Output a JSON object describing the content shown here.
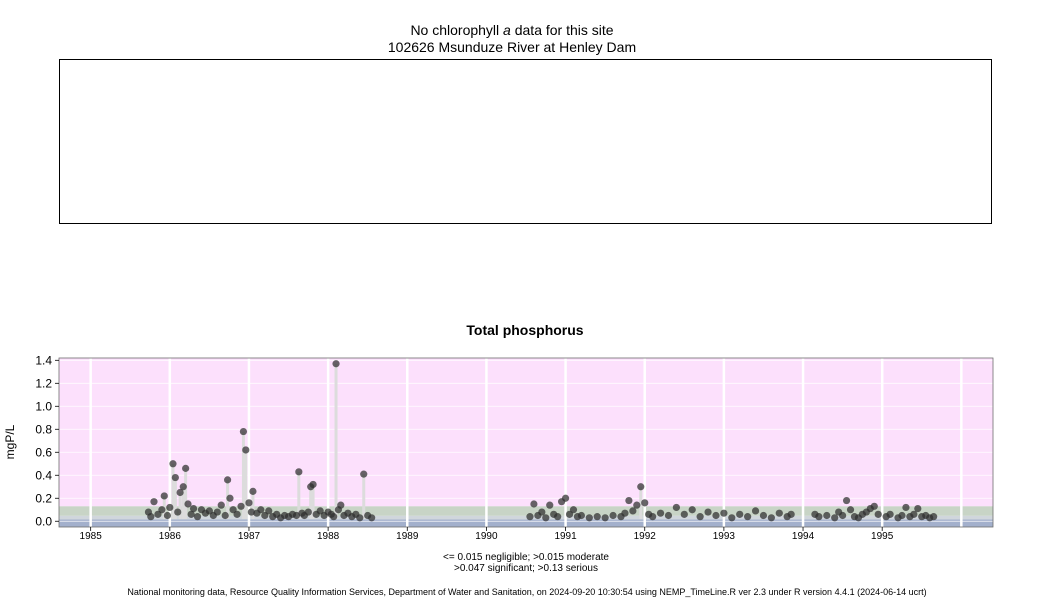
{
  "header": {
    "line1_prefix": "No chlorophyll",
    "line1_italic": "a",
    "line1_suffix": "data for this site",
    "line2": "102626 Msunduze River at Henley Dam"
  },
  "colors": {
    "serious_band": "#fce0fc",
    "significant_band": "#c8d4c6",
    "moderate_band": "#d0d6dc",
    "negligible_band": "#a3b0cc",
    "grid": "#ffffff",
    "points": "#2e2e2e",
    "spike_lines": "#dcdcdc"
  },
  "chart_data": {
    "type": "scatter",
    "title": "Total phosphorus",
    "ylabel": "mgP/L",
    "xlabel": "",
    "xlim": [
      1984.6,
      1996.4
    ],
    "ylim": [
      -0.05,
      1.42
    ],
    "yticks": [
      "0.0",
      "0.2",
      "0.4",
      "0.6",
      "0.8",
      "1.0",
      "1.2",
      "1.4"
    ],
    "xticks": [
      "1985",
      "1986",
      "1987",
      "1988",
      "1989",
      "1990",
      "1991",
      "1992",
      "1993",
      "1994",
      "1995"
    ],
    "grid": true,
    "thresholds": {
      "negligible_max": 0.015,
      "moderate_max": 0.047,
      "significant_max": 0.13
    },
    "points": [
      [
        1985.73,
        0.08
      ],
      [
        1985.76,
        0.04
      ],
      [
        1985.8,
        0.17
      ],
      [
        1985.85,
        0.06
      ],
      [
        1985.9,
        0.1
      ],
      [
        1985.93,
        0.22
      ],
      [
        1985.97,
        0.05
      ],
      [
        1986.0,
        0.12
      ],
      [
        1986.04,
        0.5
      ],
      [
        1986.07,
        0.38
      ],
      [
        1986.1,
        0.08
      ],
      [
        1986.13,
        0.25
      ],
      [
        1986.17,
        0.3
      ],
      [
        1986.2,
        0.46
      ],
      [
        1986.23,
        0.15
      ],
      [
        1986.27,
        0.06
      ],
      [
        1986.3,
        0.11
      ],
      [
        1986.35,
        0.04
      ],
      [
        1986.4,
        0.1
      ],
      [
        1986.45,
        0.07
      ],
      [
        1986.5,
        0.09
      ],
      [
        1986.55,
        0.05
      ],
      [
        1986.6,
        0.08
      ],
      [
        1986.65,
        0.14
      ],
      [
        1986.7,
        0.05
      ],
      [
        1986.73,
        0.36
      ],
      [
        1986.76,
        0.2
      ],
      [
        1986.8,
        0.1
      ],
      [
        1986.85,
        0.06
      ],
      [
        1986.9,
        0.13
      ],
      [
        1986.93,
        0.78
      ],
      [
        1986.96,
        0.62
      ],
      [
        1987.0,
        0.16
      ],
      [
        1987.03,
        0.08
      ],
      [
        1987.05,
        0.26
      ],
      [
        1987.1,
        0.07
      ],
      [
        1987.15,
        0.1
      ],
      [
        1987.2,
        0.05
      ],
      [
        1987.25,
        0.09
      ],
      [
        1987.3,
        0.04
      ],
      [
        1987.35,
        0.06
      ],
      [
        1987.4,
        0.03
      ],
      [
        1987.45,
        0.05
      ],
      [
        1987.5,
        0.04
      ],
      [
        1987.55,
        0.06
      ],
      [
        1987.6,
        0.05
      ],
      [
        1987.63,
        0.43
      ],
      [
        1987.67,
        0.07
      ],
      [
        1987.7,
        0.05
      ],
      [
        1987.75,
        0.08
      ],
      [
        1987.78,
        0.3
      ],
      [
        1987.81,
        0.32
      ],
      [
        1987.85,
        0.06
      ],
      [
        1987.9,
        0.09
      ],
      [
        1987.95,
        0.05
      ],
      [
        1988.0,
        0.08
      ],
      [
        1988.04,
        0.06
      ],
      [
        1988.07,
        0.04
      ],
      [
        1988.1,
        1.37
      ],
      [
        1988.13,
        0.1
      ],
      [
        1988.16,
        0.14
      ],
      [
        1988.2,
        0.05
      ],
      [
        1988.25,
        0.07
      ],
      [
        1988.3,
        0.04
      ],
      [
        1988.35,
        0.06
      ],
      [
        1988.4,
        0.03
      ],
      [
        1988.45,
        0.41
      ],
      [
        1988.5,
        0.05
      ],
      [
        1988.55,
        0.03
      ],
      [
        1990.55,
        0.04
      ],
      [
        1990.6,
        0.15
      ],
      [
        1990.65,
        0.05
      ],
      [
        1990.7,
        0.08
      ],
      [
        1990.75,
        0.03
      ],
      [
        1990.8,
        0.14
      ],
      [
        1990.85,
        0.06
      ],
      [
        1990.9,
        0.04
      ],
      [
        1990.95,
        0.17
      ],
      [
        1991.0,
        0.2
      ],
      [
        1991.05,
        0.06
      ],
      [
        1991.1,
        0.1
      ],
      [
        1991.15,
        0.04
      ],
      [
        1991.2,
        0.05
      ],
      [
        1991.3,
        0.03
      ],
      [
        1991.4,
        0.04
      ],
      [
        1991.5,
        0.03
      ],
      [
        1991.6,
        0.05
      ],
      [
        1991.7,
        0.04
      ],
      [
        1991.75,
        0.07
      ],
      [
        1991.8,
        0.18
      ],
      [
        1991.85,
        0.09
      ],
      [
        1991.9,
        0.14
      ],
      [
        1991.95,
        0.3
      ],
      [
        1992.0,
        0.16
      ],
      [
        1992.05,
        0.06
      ],
      [
        1992.1,
        0.04
      ],
      [
        1992.2,
        0.07
      ],
      [
        1992.3,
        0.05
      ],
      [
        1992.4,
        0.12
      ],
      [
        1992.5,
        0.06
      ],
      [
        1992.6,
        0.1
      ],
      [
        1992.7,
        0.04
      ],
      [
        1992.8,
        0.08
      ],
      [
        1992.9,
        0.05
      ],
      [
        1993.0,
        0.07
      ],
      [
        1993.1,
        0.03
      ],
      [
        1993.2,
        0.06
      ],
      [
        1993.3,
        0.04
      ],
      [
        1993.4,
        0.09
      ],
      [
        1993.5,
        0.05
      ],
      [
        1993.6,
        0.03
      ],
      [
        1993.7,
        0.07
      ],
      [
        1993.8,
        0.04
      ],
      [
        1993.85,
        0.06
      ],
      [
        1994.15,
        0.06
      ],
      [
        1994.2,
        0.04
      ],
      [
        1994.3,
        0.05
      ],
      [
        1994.4,
        0.03
      ],
      [
        1994.45,
        0.08
      ],
      [
        1994.5,
        0.05
      ],
      [
        1994.55,
        0.18
      ],
      [
        1994.6,
        0.1
      ],
      [
        1994.65,
        0.04
      ],
      [
        1994.7,
        0.03
      ],
      [
        1994.75,
        0.06
      ],
      [
        1994.8,
        0.08
      ],
      [
        1994.85,
        0.11
      ],
      [
        1994.9,
        0.13
      ],
      [
        1994.95,
        0.06
      ],
      [
        1995.05,
        0.04
      ],
      [
        1995.1,
        0.06
      ],
      [
        1995.2,
        0.03
      ],
      [
        1995.25,
        0.05
      ],
      [
        1995.3,
        0.12
      ],
      [
        1995.35,
        0.04
      ],
      [
        1995.4,
        0.06
      ],
      [
        1995.45,
        0.11
      ],
      [
        1995.5,
        0.04
      ],
      [
        1995.55,
        0.05
      ],
      [
        1995.6,
        0.03
      ],
      [
        1995.65,
        0.04
      ]
    ]
  },
  "legend": {
    "line1": "<= 0.015 negligible; >0.015 moderate",
    "line2": ">0.047 significant; >0.13 serious"
  },
  "footer": "National monitoring data, Resource Quality Information Services, Department of Water and Sanitation, on 2024-09-20 10:30:54 using NEMP_TimeLine.R ver 2.3 under R version 4.4.1 (2024-06-14 ucrt)"
}
